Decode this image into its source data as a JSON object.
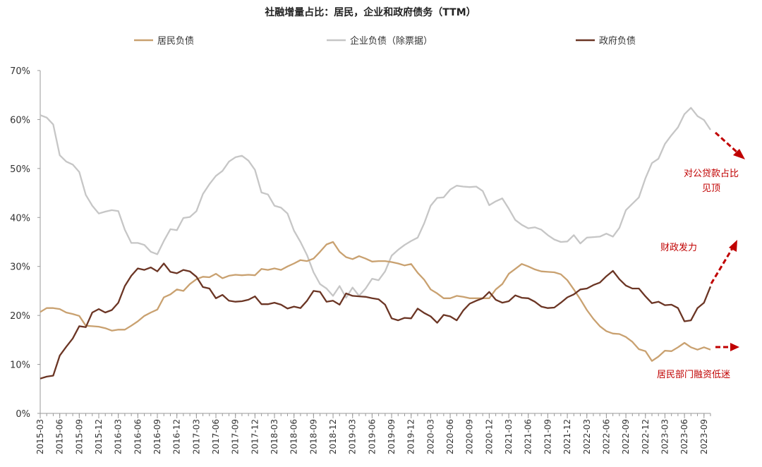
{
  "chart_data": {
    "type": "line",
    "title": "社融增量占比：居民，企业和政府债务（TTM）",
    "ylim": [
      0,
      70
    ],
    "yticks": [
      "0%",
      "10%",
      "20%",
      "30%",
      "40%",
      "50%",
      "60%",
      "70%"
    ],
    "x_start": "2015-03",
    "x_end": "2023-10",
    "x_tick_labels": [
      "2015-03",
      "2015-06",
      "2015-09",
      "2015-12",
      "2016-03",
      "2016-06",
      "2016-09",
      "2016-12",
      "2017-03",
      "2017-06",
      "2017-09",
      "2017-12",
      "2018-03",
      "2018-06",
      "2018-09",
      "2018-12",
      "2019-03",
      "2019-06",
      "2019-09",
      "2019-12",
      "2020-03",
      "2020-06",
      "2020-09",
      "2020-12",
      "2021-03",
      "2021-06",
      "2021-09",
      "2021-12",
      "2022-03",
      "2022-06",
      "2022-09",
      "2022-12",
      "2023-03",
      "2023-06",
      "2023-09"
    ],
    "legend_position": "top",
    "series": [
      {
        "name": "居民负债",
        "color": "#c9a170",
        "values": [
          20.7,
          21.5,
          21.5,
          21.3,
          20.6,
          20.3,
          19.9,
          17.9,
          17.8,
          17.7,
          17.4,
          16.9,
          17.1,
          17.1,
          17.9,
          18.8,
          19.9,
          20.6,
          21.2,
          23.7,
          24.3,
          25.3,
          25.0,
          26.4,
          27.4,
          27.9,
          27.8,
          28.5,
          27.6,
          28.1,
          28.3,
          28.2,
          28.3,
          28.2,
          29.5,
          29.3,
          29.6,
          29.3,
          30.0,
          30.6,
          31.3,
          31.1,
          31.6,
          33.0,
          34.5,
          35.0,
          33.0,
          31.9,
          31.5,
          32.1,
          31.6,
          31.0,
          31.1,
          31.1,
          30.9,
          30.6,
          30.2,
          30.5,
          28.7,
          27.3,
          25.3,
          24.5,
          23.5,
          23.5,
          24.0,
          23.8,
          23.5,
          23.5,
          23.5,
          23.5,
          25.3,
          26.4,
          28.5,
          29.5,
          30.5,
          30.0,
          29.4,
          29.0,
          28.9,
          28.8,
          28.4,
          27.2,
          25.3,
          23.3,
          21.1,
          19.3,
          17.8,
          16.8,
          16.3,
          16.2,
          15.6,
          14.6,
          13.1,
          12.7,
          10.7,
          11.6,
          12.8,
          12.7,
          13.5,
          14.4,
          13.5,
          13.0,
          13.5,
          13.0
        ],
        "annotation": "居民部门融资低迷"
      },
      {
        "name": "企业负债（除票据）",
        "color": "#c6c6c6",
        "values": [
          60.9,
          60.4,
          59.0,
          52.7,
          51.4,
          50.8,
          49.3,
          44.6,
          42.4,
          40.8,
          41.2,
          41.5,
          41.3,
          37.5,
          34.8,
          34.8,
          34.4,
          33.0,
          32.5,
          35.2,
          37.6,
          37.4,
          39.9,
          40.1,
          41.3,
          44.8,
          46.8,
          48.5,
          49.5,
          51.4,
          52.3,
          52.6,
          51.6,
          49.7,
          45.1,
          44.7,
          42.4,
          42.0,
          40.8,
          37.3,
          35.0,
          32.3,
          28.8,
          26.4,
          25.5,
          24.0,
          26.0,
          23.6,
          25.7,
          24.0,
          25.5,
          27.5,
          27.2,
          29.0,
          32.2,
          33.4,
          34.4,
          35.2,
          35.9,
          38.8,
          42.4,
          44.0,
          44.1,
          45.7,
          46.5,
          46.3,
          46.2,
          46.3,
          45.4,
          42.5,
          43.3,
          43.9,
          41.8,
          39.5,
          38.5,
          37.8,
          38.0,
          37.5,
          36.4,
          35.5,
          35.0,
          35.1,
          36.4,
          34.7,
          35.9,
          36.0,
          36.1,
          36.7,
          36.1,
          37.9,
          41.5,
          42.8,
          44.1,
          48.0,
          51.1,
          52.0,
          55.0,
          56.8,
          58.4,
          61.1,
          62.4,
          60.7,
          59.9,
          57.9
        ],
        "annotation": "对公贷款占比见顶"
      },
      {
        "name": "政府负债",
        "color": "#6b3524",
        "values": [
          7.1,
          7.5,
          7.7,
          11.8,
          13.6,
          15.3,
          17.8,
          17.6,
          20.6,
          21.3,
          20.6,
          21.1,
          22.6,
          26.0,
          28.1,
          29.6,
          29.3,
          29.8,
          29.0,
          30.6,
          28.9,
          28.6,
          29.3,
          29.0,
          27.9,
          25.8,
          25.5,
          23.5,
          24.2,
          23.0,
          22.8,
          22.9,
          23.2,
          23.9,
          22.3,
          22.3,
          22.6,
          22.2,
          21.4,
          21.8,
          21.5,
          23.0,
          25.0,
          24.8,
          22.8,
          23.0,
          22.2,
          24.5,
          24.0,
          23.9,
          23.8,
          23.5,
          23.3,
          22.2,
          19.4,
          19.0,
          19.5,
          19.4,
          21.4,
          20.5,
          19.8,
          18.5,
          20.1,
          19.8,
          19.0,
          21.0,
          22.4,
          23.0,
          23.5,
          24.8,
          23.2,
          22.6,
          22.9,
          24.1,
          23.6,
          23.5,
          22.8,
          21.8,
          21.5,
          21.6,
          22.6,
          23.7,
          24.3,
          25.3,
          25.5,
          26.2,
          26.7,
          28.0,
          29.1,
          27.4,
          26.1,
          25.5,
          25.5,
          23.9,
          22.5,
          22.8,
          22.1,
          22.2,
          21.5,
          18.8,
          19.0,
          21.5,
          22.6,
          25.9
        ],
        "annotation": "财政发力"
      }
    ]
  }
}
